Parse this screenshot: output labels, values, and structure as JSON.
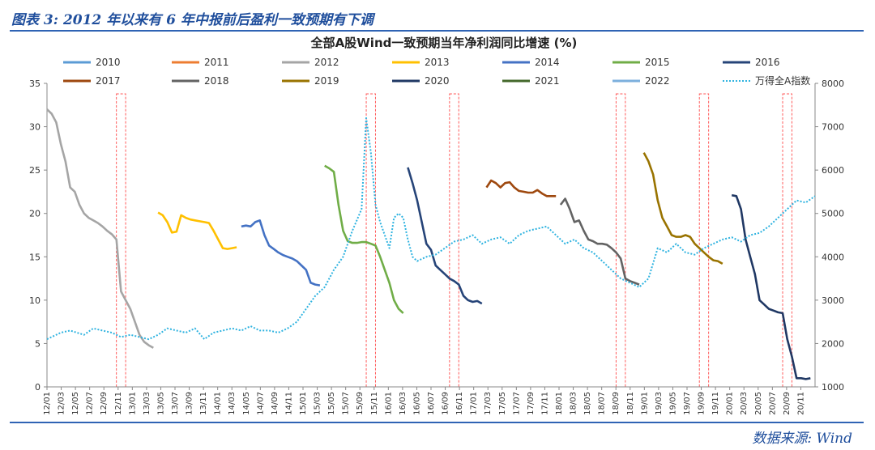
{
  "caption": "图表 3: 2012 年以来有 6 年中报前后盈利一致预期有下调",
  "source": "数据来源: Wind",
  "colors": {
    "accent": "#1f4e9c",
    "frame": "#2f63b4",
    "marker": "#ff5a5a"
  },
  "chart_data": {
    "type": "line",
    "title": "全部A股Wind一致预期当年净利润同比增速 (%)",
    "ylim_left": [
      0,
      35
    ],
    "yticks_left": [
      "0",
      "5",
      "10",
      "15",
      "20",
      "25",
      "30",
      "35"
    ],
    "ylim_right": [
      1000,
      8000
    ],
    "yticks_right": [
      "1000",
      "2000",
      "3000",
      "4000",
      "5000",
      "6000",
      "7000",
      "8000"
    ],
    "x_ticks": [
      "12/01",
      "12/03",
      "12/05",
      "12/07",
      "12/09",
      "12/11",
      "13/01",
      "13/03",
      "13/05",
      "13/07",
      "13/09",
      "13/11",
      "14/01",
      "14/03",
      "14/05",
      "14/07",
      "14/09",
      "14/11",
      "15/01",
      "15/03",
      "15/05",
      "15/07",
      "15/09",
      "15/11",
      "16/01",
      "16/03",
      "16/05",
      "16/07",
      "16/09",
      "16/11",
      "17/01",
      "17/03",
      "17/05",
      "17/07",
      "17/09",
      "17/11",
      "18/01",
      "18/03",
      "18/05",
      "18/07",
      "18/09",
      "18/11",
      "19/01",
      "19/03",
      "19/05",
      "19/07",
      "19/09",
      "19/11",
      "20/01",
      "20/03",
      "20/05",
      "20/07",
      "20/09",
      "20/11"
    ],
    "legend": [
      "2010",
      "2011",
      "2012",
      "2013",
      "2014",
      "2015",
      "2016",
      "2017",
      "2018",
      "2019",
      "2020",
      "2021",
      "2022",
      "万得全A指数"
    ],
    "series": [
      {
        "name": "2010",
        "color": "#5b9bd5",
        "axis": "left",
        "points": []
      },
      {
        "name": "2011",
        "color": "#ed7d31",
        "axis": "left",
        "points": []
      },
      {
        "name": "2012",
        "color": "#a5a5a5",
        "axis": "left",
        "points": [
          [
            0,
            32
          ],
          [
            1,
            31.5
          ],
          [
            2,
            30.5
          ],
          [
            3,
            28
          ],
          [
            4,
            26
          ],
          [
            5,
            23
          ],
          [
            6,
            22.5
          ],
          [
            7,
            21
          ],
          [
            8,
            20
          ],
          [
            9,
            19.5
          ],
          [
            10,
            19.2
          ],
          [
            11,
            18.9
          ],
          [
            12,
            18.5
          ],
          [
            13,
            18
          ],
          [
            14,
            17.6
          ],
          [
            15,
            17
          ],
          [
            16,
            11
          ],
          [
            17,
            10
          ],
          [
            18,
            9
          ],
          [
            19,
            7.5
          ],
          [
            20,
            6
          ],
          [
            21,
            5.2
          ],
          [
            22,
            4.8
          ],
          [
            23,
            4.5
          ]
        ]
      },
      {
        "name": "2013",
        "color": "#ffc000",
        "axis": "left",
        "points": [
          [
            24,
            20.1
          ],
          [
            25,
            19.8
          ],
          [
            26,
            19
          ],
          [
            27,
            17.8
          ],
          [
            28,
            17.9
          ],
          [
            29,
            19.8
          ],
          [
            30,
            19.5
          ],
          [
            31,
            19.3
          ],
          [
            32,
            19.2
          ],
          [
            33,
            19.1
          ],
          [
            34,
            19
          ],
          [
            35,
            18.9
          ],
          [
            36,
            18
          ],
          [
            37,
            17
          ],
          [
            38,
            16
          ],
          [
            39,
            15.9
          ],
          [
            40,
            16
          ],
          [
            41,
            16.1
          ]
        ]
      },
      {
        "name": "2014",
        "color": "#4472c4",
        "axis": "left",
        "points": [
          [
            42,
            18.5
          ],
          [
            43,
            18.6
          ],
          [
            44,
            18.5
          ],
          [
            45,
            19
          ],
          [
            46,
            19.2
          ],
          [
            47,
            17.5
          ],
          [
            48,
            16.3
          ],
          [
            49,
            15.9
          ],
          [
            50,
            15.5
          ],
          [
            51,
            15.2
          ],
          [
            52,
            15
          ],
          [
            53,
            14.8
          ],
          [
            54,
            14.5
          ],
          [
            55,
            14
          ],
          [
            56,
            13.5
          ],
          [
            57,
            12
          ],
          [
            58,
            11.8
          ],
          [
            59,
            11.7
          ]
        ]
      },
      {
        "name": "2015",
        "color": "#70ad47",
        "axis": "left",
        "points": [
          [
            60,
            25.5
          ],
          [
            61,
            25.2
          ],
          [
            62,
            24.8
          ],
          [
            63,
            21
          ],
          [
            64,
            18
          ],
          [
            65,
            16.8
          ],
          [
            66,
            16.6
          ],
          [
            67,
            16.6
          ],
          [
            68,
            16.7
          ],
          [
            69,
            16.7
          ],
          [
            70,
            16.5
          ],
          [
            71,
            16.3
          ],
          [
            72,
            15
          ],
          [
            73,
            13.5
          ],
          [
            74,
            12
          ],
          [
            75,
            10
          ],
          [
            76,
            9
          ],
          [
            77,
            8.5
          ]
        ]
      },
      {
        "name": "2016",
        "color": "#264478",
        "axis": "left",
        "points": [
          [
            78,
            25.3
          ],
          [
            79,
            23.5
          ],
          [
            80,
            21.5
          ],
          [
            81,
            19
          ],
          [
            82,
            16.5
          ],
          [
            83,
            15.8
          ],
          [
            84,
            14
          ],
          [
            85,
            13.5
          ],
          [
            86,
            13
          ],
          [
            87,
            12.5
          ],
          [
            88,
            12.2
          ],
          [
            89,
            11.8
          ],
          [
            90,
            10.5
          ],
          [
            91,
            10
          ],
          [
            92,
            9.8
          ],
          [
            93,
            9.9
          ],
          [
            94,
            9.6
          ]
        ]
      },
      {
        "name": "2017",
        "color": "#9e480e",
        "axis": "left",
        "points": [
          [
            95,
            23
          ],
          [
            96,
            23.8
          ],
          [
            97,
            23.5
          ],
          [
            98,
            23
          ],
          [
            99,
            23.5
          ],
          [
            100,
            23.6
          ],
          [
            101,
            23
          ],
          [
            102,
            22.6
          ],
          [
            103,
            22.5
          ],
          [
            104,
            22.4
          ],
          [
            105,
            22.4
          ],
          [
            106,
            22.7
          ],
          [
            107,
            22.3
          ],
          [
            108,
            22
          ],
          [
            109,
            22
          ],
          [
            110,
            22
          ]
        ]
      },
      {
        "name": "2018",
        "color": "#636363",
        "axis": "left",
        "points": [
          [
            111,
            21
          ],
          [
            112,
            21.7
          ],
          [
            113,
            20.5
          ],
          [
            114,
            19
          ],
          [
            115,
            19.2
          ],
          [
            116,
            18
          ],
          [
            117,
            17
          ],
          [
            118,
            16.8
          ],
          [
            119,
            16.5
          ],
          [
            120,
            16.5
          ],
          [
            121,
            16.4
          ],
          [
            122,
            16
          ],
          [
            123,
            15.5
          ],
          [
            124,
            14.8
          ],
          [
            125,
            12.5
          ],
          [
            126,
            12.2
          ],
          [
            127,
            12
          ],
          [
            128,
            11.8
          ]
        ]
      },
      {
        "name": "2019",
        "color": "#997300",
        "axis": "left",
        "points": [
          [
            129,
            27
          ],
          [
            130,
            26
          ],
          [
            131,
            24.5
          ],
          [
            132,
            21.5
          ],
          [
            133,
            19.5
          ],
          [
            134,
            18.5
          ],
          [
            135,
            17.5
          ],
          [
            136,
            17.3
          ],
          [
            137,
            17.3
          ],
          [
            138,
            17.5
          ],
          [
            139,
            17.3
          ],
          [
            140,
            16.5
          ],
          [
            141,
            16
          ],
          [
            142,
            15.5
          ],
          [
            143,
            15
          ],
          [
            144,
            14.6
          ],
          [
            145,
            14.5
          ],
          [
            146,
            14.2
          ]
        ]
      },
      {
        "name": "2020",
        "color": "#203864",
        "axis": "left",
        "points": [
          [
            148,
            22.1
          ],
          [
            149,
            22
          ],
          [
            150,
            20.5
          ],
          [
            151,
            17
          ],
          [
            152,
            15
          ],
          [
            153,
            13
          ],
          [
            154,
            10
          ],
          [
            155,
            9.5
          ],
          [
            156,
            9
          ],
          [
            157,
            8.8
          ],
          [
            158,
            8.6
          ],
          [
            159,
            8.5
          ],
          [
            160,
            5.5
          ],
          [
            161,
            3.5
          ],
          [
            162,
            1
          ],
          [
            163,
            1
          ],
          [
            164,
            0.9
          ],
          [
            165,
            1
          ]
        ]
      },
      {
        "name": "2021",
        "color": "#43682b",
        "axis": "left",
        "points": []
      },
      {
        "name": "2022",
        "color": "#7cafdd",
        "axis": "left",
        "points": []
      },
      {
        "name": "万得全A指数",
        "color": "#2fb3e0",
        "axis": "right",
        "dashed": true,
        "points": [
          [
            0,
            2100
          ],
          [
            3,
            2250
          ],
          [
            5,
            2300
          ],
          [
            8,
            2200
          ],
          [
            10,
            2350
          ],
          [
            12,
            2300
          ],
          [
            14,
            2250
          ],
          [
            16,
            2150
          ],
          [
            18,
            2200
          ],
          [
            20,
            2150
          ],
          [
            22,
            2100
          ],
          [
            24,
            2200
          ],
          [
            26,
            2350
          ],
          [
            28,
            2300
          ],
          [
            30,
            2250
          ],
          [
            32,
            2350
          ],
          [
            34,
            2100
          ],
          [
            36,
            2250
          ],
          [
            38,
            2300
          ],
          [
            40,
            2350
          ],
          [
            42,
            2300
          ],
          [
            44,
            2400
          ],
          [
            46,
            2300
          ],
          [
            48,
            2300
          ],
          [
            50,
            2250
          ],
          [
            52,
            2350
          ],
          [
            54,
            2500
          ],
          [
            56,
            2800
          ],
          [
            58,
            3100
          ],
          [
            60,
            3300
          ],
          [
            62,
            3700
          ],
          [
            64,
            4000
          ],
          [
            66,
            4600
          ],
          [
            68,
            5100
          ],
          [
            69,
            7200
          ],
          [
            70,
            6400
          ],
          [
            71,
            5200
          ],
          [
            72,
            4800
          ],
          [
            73,
            4500
          ],
          [
            74,
            4200
          ],
          [
            75,
            4900
          ],
          [
            76,
            5000
          ],
          [
            77,
            4900
          ],
          [
            78,
            4400
          ],
          [
            79,
            4000
          ],
          [
            80,
            3900
          ],
          [
            82,
            4000
          ],
          [
            84,
            4050
          ],
          [
            86,
            4200
          ],
          [
            88,
            4350
          ],
          [
            90,
            4400
          ],
          [
            92,
            4500
          ],
          [
            94,
            4300
          ],
          [
            96,
            4400
          ],
          [
            98,
            4450
          ],
          [
            100,
            4300
          ],
          [
            102,
            4500
          ],
          [
            104,
            4600
          ],
          [
            106,
            4650
          ],
          [
            108,
            4700
          ],
          [
            110,
            4500
          ],
          [
            112,
            4300
          ],
          [
            114,
            4400
          ],
          [
            116,
            4200
          ],
          [
            118,
            4100
          ],
          [
            120,
            3900
          ],
          [
            122,
            3700
          ],
          [
            124,
            3500
          ],
          [
            126,
            3400
          ],
          [
            128,
            3300
          ],
          [
            130,
            3500
          ],
          [
            132,
            4200
          ],
          [
            134,
            4100
          ],
          [
            136,
            4300
          ],
          [
            138,
            4100
          ],
          [
            140,
            4050
          ],
          [
            142,
            4200
          ],
          [
            144,
            4300
          ],
          [
            146,
            4400
          ],
          [
            148,
            4450
          ],
          [
            150,
            4350
          ],
          [
            152,
            4500
          ],
          [
            154,
            4550
          ],
          [
            156,
            4700
          ],
          [
            158,
            4900
          ],
          [
            160,
            5100
          ],
          [
            162,
            5300
          ],
          [
            164,
            5250
          ],
          [
            166,
            5400
          ]
        ]
      }
    ],
    "marker_x": [
      [
        15,
        17
      ],
      [
        69,
        71
      ],
      [
        87,
        89
      ],
      [
        123,
        125
      ],
      [
        141,
        143
      ],
      [
        159,
        161
      ]
    ]
  }
}
